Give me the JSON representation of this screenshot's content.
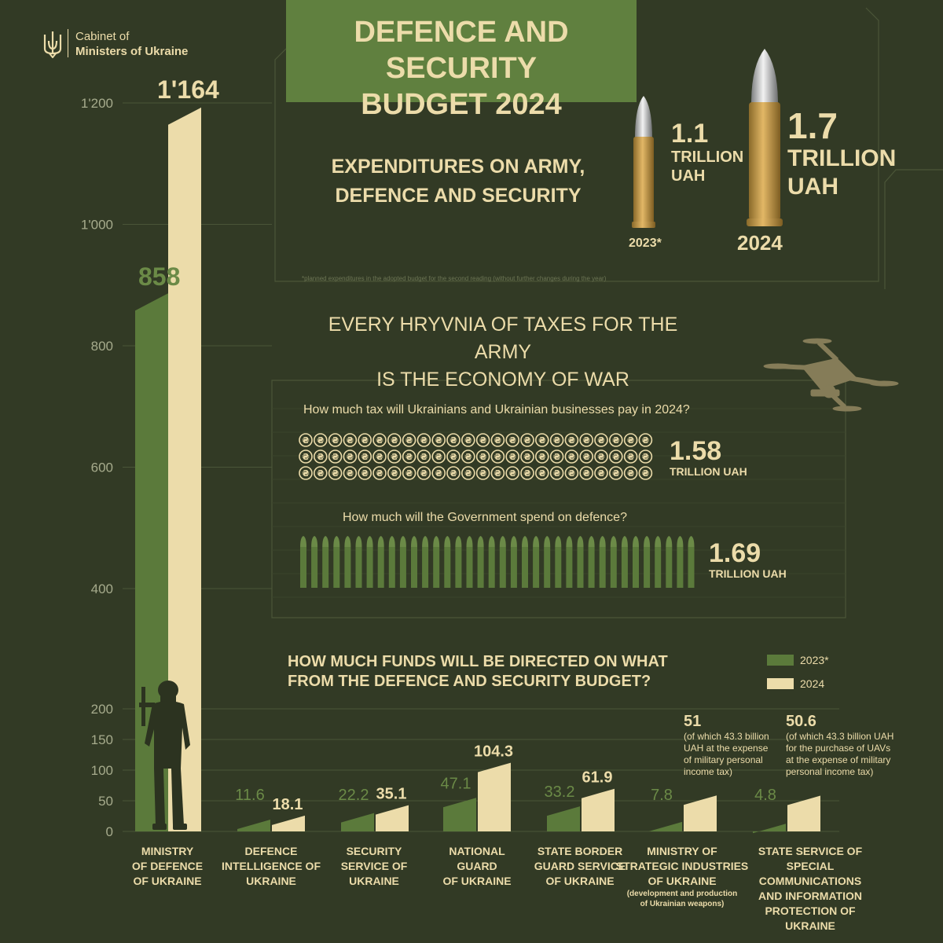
{
  "header": {
    "org_line1": "Cabinet of",
    "org_line2": "Ministers of Ukraine",
    "title_line1": "DEFENCE AND SECURITY",
    "title_line2": "BUDGET 2024"
  },
  "expenditures": {
    "heading_line1": "EXPENDITURES ON ARMY,",
    "heading_line2": "DEFENCE AND SECURITY",
    "y2023": {
      "value": "1.1",
      "unit1": "TRILLION",
      "unit2": "UAH",
      "label": "2023*"
    },
    "y2024": {
      "value": "1.7",
      "unit1": "TRILLION",
      "unit2": "UAH",
      "label": "2024"
    },
    "footnote": "*planned expenditures in the adopted budget for the second reading (without further changes during the year)"
  },
  "economy": {
    "heading_line1": "EVERY HRYVNIA OF TAXES FOR THE ARMY",
    "heading_line2": "IS THE ECONOMY OF WAR",
    "tax_question": "How much tax will Ukrainians and Ukrainian businesses pay in 2024?",
    "tax_value": "1.58",
    "tax_unit": "TRILLION UAH",
    "coin_glyph": "₴",
    "spend_question": "How much will the Government spend on defence?",
    "spend_value": "1.69",
    "spend_unit": "TRILLION UAH"
  },
  "funds": {
    "heading_line1": "HOW MUCH FUNDS WILL BE DIRECTED ON WHAT",
    "heading_line2": "FROM THE DEFENCE AND SECURITY BUDGET?"
  },
  "colors": {
    "background": "#323a25",
    "series_2023": "#5b7a3b",
    "series_2024": "#ecdcaa",
    "title_box": "#60803f"
  },
  "chart_data": [
    {
      "type": "bar",
      "chart": "main-axis",
      "y_ticks": [
        "1'200",
        "1'000",
        "800",
        "600",
        "400"
      ],
      "categories": [
        "MINISTRY OF DEFENCE OF UKRAINE"
      ],
      "series": [
        {
          "name": "2023*",
          "values": [
            858
          ],
          "labels": [
            "858"
          ]
        },
        {
          "name": "2024",
          "values": [
            1164
          ],
          "labels": [
            "1'164"
          ]
        }
      ],
      "ylim": [
        0,
        1200
      ]
    },
    {
      "type": "bar",
      "chart": "bottom-axis",
      "legend": [
        "2023*",
        "2024"
      ],
      "legend_position": "top-right",
      "y_ticks": [
        "200",
        "150",
        "100",
        "50",
        "0"
      ],
      "ylim": [
        0,
        200
      ],
      "categories": [
        {
          "lines": [
            "MINISTRY",
            "OF DEFENCE",
            "OF UKRAINE"
          ],
          "v2023": null,
          "v2024": null
        },
        {
          "lines": [
            "DEFENCE",
            "INTELLIGENCE OF",
            "UKRAINE"
          ],
          "v2023": 11.6,
          "v2024": 18.1,
          "l2023": "11.6",
          "l2024": "18.1"
        },
        {
          "lines": [
            "SECURITY",
            "SERVICE OF",
            "UKRAINE"
          ],
          "v2023": 22.2,
          "v2024": 35.1,
          "l2023": "22.2",
          "l2024": "35.1"
        },
        {
          "lines": [
            "NATIONAL",
            "GUARD",
            "OF UKRAINE"
          ],
          "v2023": 47.1,
          "v2024": 104.3,
          "l2023": "47.1",
          "l2024": "104.3"
        },
        {
          "lines": [
            "STATE BORDER",
            "GUARD SERVICE",
            "OF UKRAINE"
          ],
          "v2023": 33.2,
          "v2024": 61.9,
          "l2023": "33.2",
          "l2024": "61.9"
        },
        {
          "lines": [
            "MINISTRY OF",
            "STRATEGIC INDUSTRIES",
            "OF UKRAINE"
          ],
          "note": [
            "(development and production",
            "of Ukrainian weapons)"
          ],
          "v2023": 7.8,
          "v2024": 51,
          "l2023": "7.8",
          "l2024": "51",
          "annotation": [
            "(of which 43.3 billion",
            "UAH at the expense",
            "of military personal",
            "income tax)"
          ]
        },
        {
          "lines": [
            "STATE SERVICE OF SPECIAL",
            "COMMUNICATIONS",
            "AND INFORMATION",
            "PROTECTION OF UKRAINE"
          ],
          "v2023": 4.8,
          "v2024": 50.6,
          "l2023": "4.8",
          "l2024": "50.6",
          "annotation": [
            "(of which 43.3 billion UAH",
            "for the purchase of UAVs",
            "at the expense of military",
            "personal income tax)"
          ]
        }
      ]
    }
  ]
}
